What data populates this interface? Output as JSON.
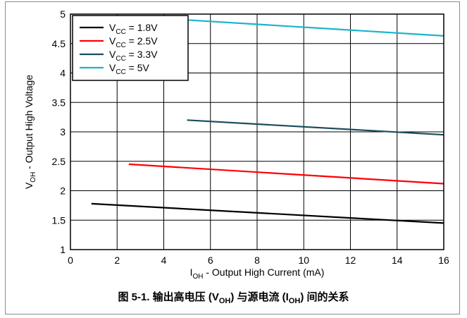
{
  "chart_data": {
    "type": "line",
    "xlabel": {
      "main": "I",
      "sub": "OH",
      "rest": " - Output High Current (mA)"
    },
    "ylabel": {
      "main": "V",
      "sub": "OH",
      "rest": " - Output High Voltage"
    },
    "xlim": [
      0,
      16
    ],
    "ylim": [
      1,
      5
    ],
    "xticks": [
      "0",
      "2",
      "4",
      "6",
      "8",
      "10",
      "12",
      "14",
      "16"
    ],
    "yticks": [
      "1",
      "1.5",
      "2",
      "2.5",
      "3",
      "3.5",
      "4",
      "4.5",
      "5"
    ],
    "xtick_values": [
      0,
      2,
      4,
      6,
      8,
      10,
      12,
      14,
      16
    ],
    "ytick_values": [
      1,
      1.5,
      2,
      2.5,
      3,
      3.5,
      4,
      4.5,
      5
    ],
    "grid": true,
    "legend_position": "top-left",
    "series": [
      {
        "name": "V_CC = 1.8V",
        "label_main": "V",
        "label_sub": "CC",
        "label_rest": " = 1.8V",
        "color": "#000000",
        "x": [
          0.9,
          16
        ],
        "y": [
          1.78,
          1.45
        ]
      },
      {
        "name": "V_CC = 2.5V",
        "label_main": "V",
        "label_sub": "CC",
        "label_rest": " = 2.5V",
        "color": "#ff0000",
        "x": [
          2.5,
          16
        ],
        "y": [
          2.45,
          2.12
        ]
      },
      {
        "name": "V_CC = 3.3V",
        "label_main": "V",
        "label_sub": "CC",
        "label_rest": " = 3.3V",
        "color": "#1b4d5c",
        "x": [
          5,
          16
        ],
        "y": [
          3.2,
          2.95
        ]
      },
      {
        "name": "V_CC = 5V",
        "label_main": "V",
        "label_sub": "CC",
        "label_rest": " = 5V",
        "color": "#1ab5c9",
        "x": [
          5,
          16
        ],
        "y": [
          4.9,
          4.63
        ]
      }
    ]
  },
  "caption": {
    "prefix": "图 5-1. 输出高电压 (V",
    "sub1": "OH",
    "middle": ") 与源电流 (I",
    "sub2": "OH",
    "suffix": ") 间的关系"
  }
}
